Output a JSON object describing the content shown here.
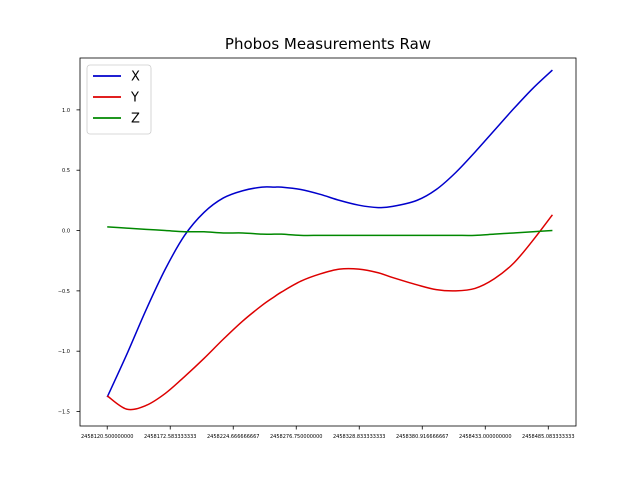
{
  "chart_data": {
    "type": "line",
    "title": "Phobos Measurements Raw",
    "xlabel": "",
    "ylabel": "",
    "xlim": [
      2458098.0,
      2458508.0
    ],
    "ylim": [
      -1.62,
      1.43
    ],
    "x_ticks": [
      2458120.5,
      2458172.583333333,
      2458224.666666667,
      2458276.75,
      2458328.833333333,
      2458380.916666667,
      2458433.0,
      2458485.083333333
    ],
    "x_tick_labels": [
      "2458120.500000000",
      "2458172.583333333",
      "2458224.666666667",
      "2458276.750000000",
      "2458328.833333333",
      "2458380.916666667",
      "2458433.000000000",
      "2458485.083333333"
    ],
    "y_ticks": [
      -1.5,
      -1.0,
      -0.5,
      0.0,
      0.5,
      1.0
    ],
    "y_tick_labels": [
      "−1.5",
      "−1.0",
      "−0.5",
      "0.0",
      "0.5",
      "1.0"
    ],
    "grid": false,
    "legend": "top-left",
    "x": [
      2458120.5,
      2458136.5,
      2458152.5,
      2458168.5,
      2458184.5,
      2458200.5,
      2458216.5,
      2458232.5,
      2458248.5,
      2458258.5,
      2458264.5,
      2458280.5,
      2458296.5,
      2458312.5,
      2458328.5,
      2458344.5,
      2458356.5,
      2458376.5,
      2458392.5,
      2458408.5,
      2458424.5,
      2458440.5,
      2458456.5,
      2458472.5,
      2458488.5
    ],
    "series": [
      {
        "name": "X",
        "color": "#0000cc",
        "values": [
          -1.38,
          -1.03,
          -0.66,
          -0.32,
          -0.04,
          0.15,
          0.27,
          0.33,
          0.36,
          0.36,
          0.36,
          0.34,
          0.3,
          0.25,
          0.21,
          0.19,
          0.2,
          0.25,
          0.34,
          0.48,
          0.65,
          0.83,
          1.01,
          1.18,
          1.33
        ]
      },
      {
        "name": "Y",
        "color": "#dd0000",
        "values": [
          -1.37,
          -1.48,
          -1.45,
          -1.35,
          -1.21,
          -1.06,
          -0.9,
          -0.75,
          -0.62,
          -0.55,
          -0.51,
          -0.42,
          -0.36,
          -0.32,
          -0.32,
          -0.35,
          -0.39,
          -0.45,
          -0.49,
          -0.5,
          -0.48,
          -0.4,
          -0.27,
          -0.08,
          0.13
        ]
      },
      {
        "name": "Z",
        "color": "#008800",
        "values": [
          0.03,
          0.02,
          0.01,
          0.0,
          -0.01,
          -0.01,
          -0.02,
          -0.02,
          -0.03,
          -0.03,
          -0.03,
          -0.04,
          -0.04,
          -0.04,
          -0.04,
          -0.04,
          -0.04,
          -0.04,
          -0.04,
          -0.04,
          -0.04,
          -0.03,
          -0.02,
          -0.01,
          0.0
        ]
      }
    ]
  }
}
